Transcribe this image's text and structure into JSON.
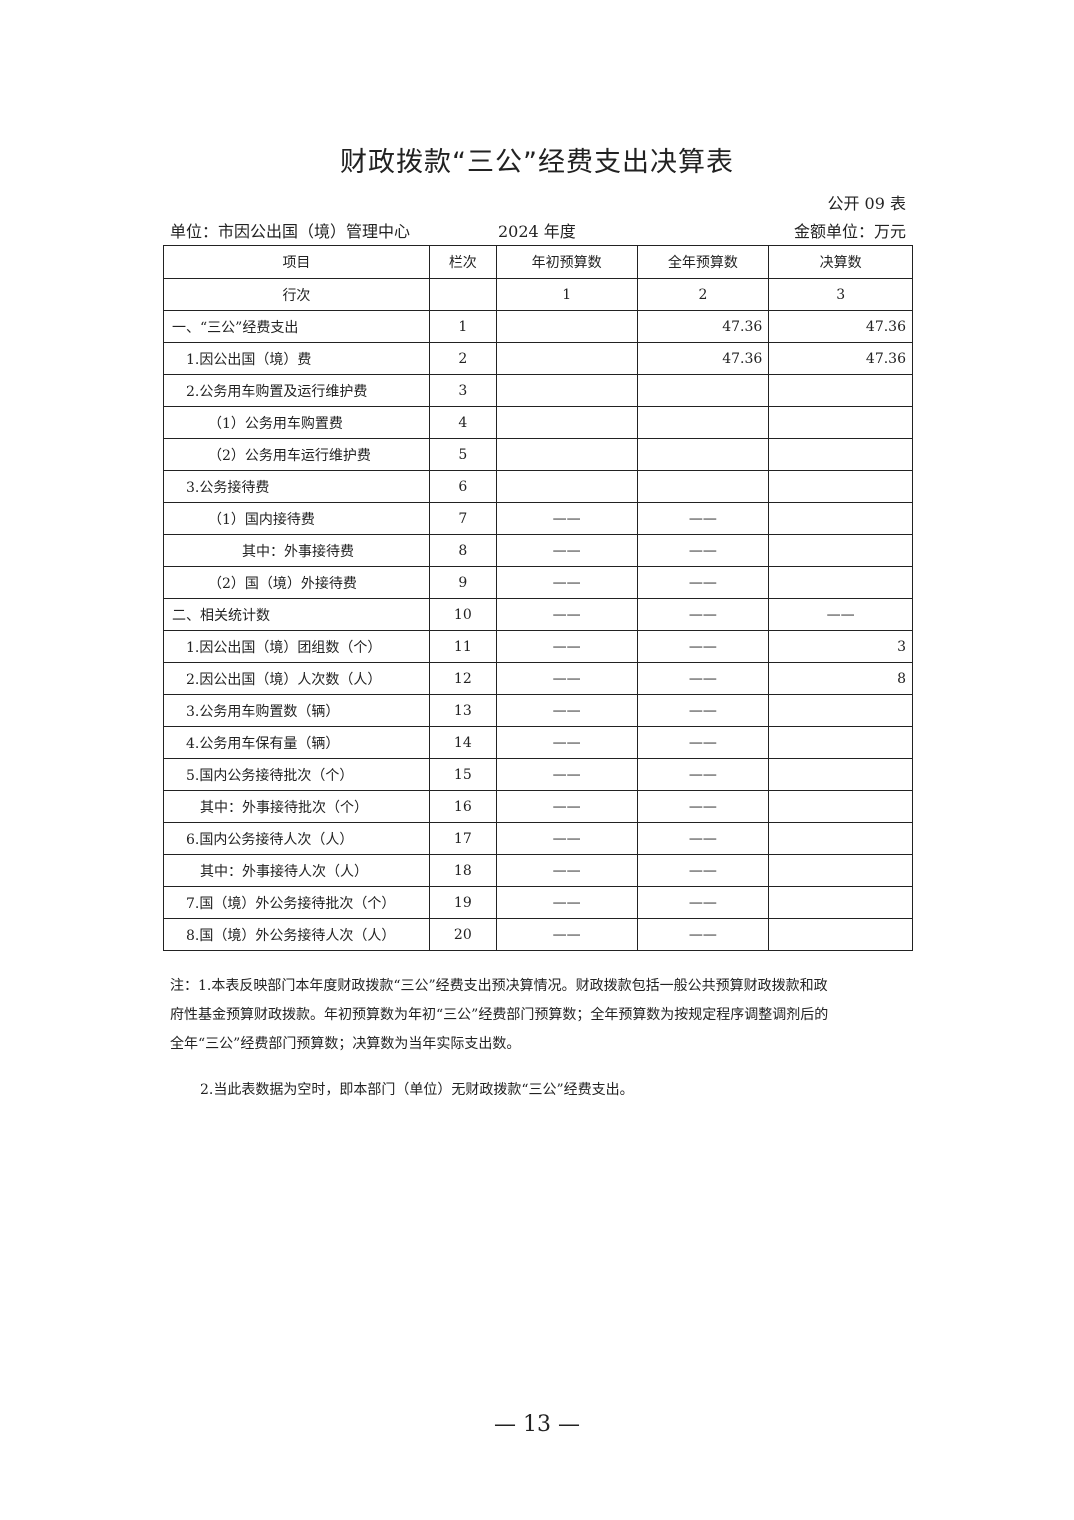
{
  "title": "财政拨款“三公”经费支出决算表",
  "table_no": "公开 09 表",
  "unit": "单位：市因公出国（境）管理中心",
  "year": "2024 年度",
  "money_unit": "金额单位：万元",
  "headers": [
    "项目",
    "栏次",
    "年初预算数",
    "全年预算数",
    "决算数"
  ],
  "index_row": [
    "行次",
    "",
    "1",
    "2",
    "3"
  ],
  "rows": [
    {
      "label": "一、“三公”经费支出",
      "indent": 0,
      "no": "1",
      "c1": "",
      "c2": "47.36",
      "c3": "47.36"
    },
    {
      "label": "1.因公出国（境）费",
      "indent": 1,
      "no": "2",
      "c1": "",
      "c2": "47.36",
      "c3": "47.36"
    },
    {
      "label": "2.公务用车购置及运行维护费",
      "indent": 1,
      "no": "3",
      "c1": "",
      "c2": "",
      "c3": ""
    },
    {
      "label": "（1）公务用车购置费",
      "indent": 2,
      "no": "4",
      "c1": "",
      "c2": "",
      "c3": ""
    },
    {
      "label": "（2）公务用车运行维护费",
      "indent": 2,
      "no": "5",
      "c1": "",
      "c2": "",
      "c3": ""
    },
    {
      "label": "3.公务接待费",
      "indent": 1,
      "no": "6",
      "c1": "",
      "c2": "",
      "c3": ""
    },
    {
      "label": "（1）国内接待费",
      "indent": 2,
      "no": "7",
      "c1": "——",
      "c2": "——",
      "c3": ""
    },
    {
      "label": "其中：外事接待费",
      "indent": 3,
      "no": "8",
      "c1": "——",
      "c2": "——",
      "c3": ""
    },
    {
      "label": "（2）国（境）外接待费",
      "indent": 2,
      "no": "9",
      "c1": "——",
      "c2": "——",
      "c3": ""
    },
    {
      "label": "二、相关统计数",
      "indent": 0,
      "no": "10",
      "c1": "——",
      "c2": "——",
      "c3": "——"
    },
    {
      "label": "1.因公出国（境）团组数（个）",
      "indent": 1,
      "no": "11",
      "c1": "——",
      "c2": "——",
      "c3": "3"
    },
    {
      "label": "2.因公出国（境）人次数（人）",
      "indent": 1,
      "no": "12",
      "c1": "——",
      "c2": "——",
      "c3": "8"
    },
    {
      "label": "3.公务用车购置数（辆）",
      "indent": 1,
      "no": "13",
      "c1": "——",
      "c2": "——",
      "c3": ""
    },
    {
      "label": "4.公务用车保有量（辆）",
      "indent": 1,
      "no": "14",
      "c1": "——",
      "c2": "——",
      "c3": ""
    },
    {
      "label": "5.国内公务接待批次（个）",
      "indent": 1,
      "no": "15",
      "c1": "——",
      "c2": "——",
      "c3": ""
    },
    {
      "label": "其中：外事接待批次（个）",
      "indent": 4,
      "no": "16",
      "c1": "——",
      "c2": "——",
      "c3": ""
    },
    {
      "label": "6.国内公务接待人次（人）",
      "indent": 1,
      "no": "17",
      "c1": "——",
      "c2": "——",
      "c3": ""
    },
    {
      "label": "其中：外事接待人次（人）",
      "indent": 4,
      "no": "18",
      "c1": "——",
      "c2": "——",
      "c3": ""
    },
    {
      "label": "7.国（境）外公务接待批次（个）",
      "indent": 1,
      "no": "19",
      "c1": "——",
      "c2": "——",
      "c3": ""
    },
    {
      "label": "8.国（境）外公务接待人次（人）",
      "indent": 1,
      "no": "20",
      "c1": "——",
      "c2": "——",
      "c3": ""
    }
  ],
  "notes": {
    "note1_lines": [
      "注：1.本表反映部门本年度财政拨款“三公”经费支出预决算情况。财政拨款包括一般公共预算财政拨款和政",
      "府性基金预算财政拨款。年初预算数为年初“三公”经费部门预算数；全年预算数为按规定程序调整调剂后的",
      "全年“三公”经费部门预算数；决算数为当年实际支出数。"
    ],
    "note2": "2.当此表数据为空时，即本部门（单位）无财政拨款“三公”经费支出。"
  },
  "page_number": "— 13 —"
}
